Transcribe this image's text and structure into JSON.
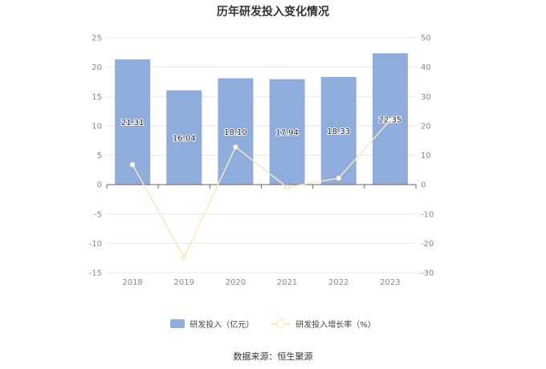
{
  "chart_data": {
    "type": "bar",
    "title": "历年研发投入变化情况",
    "categories": [
      "2018",
      "2019",
      "2020",
      "2021",
      "2022",
      "2023"
    ],
    "series": [
      {
        "name": "研发投入（亿元）",
        "type": "bar",
        "axis": "left",
        "values": [
          21.31,
          16.04,
          18.1,
          17.94,
          18.33,
          22.35
        ],
        "labels": [
          "21.31",
          "16.04",
          "18.10",
          "17.94",
          "18.33",
          "22.35"
        ]
      },
      {
        "name": "研发投入增长率（%）",
        "type": "line",
        "axis": "right",
        "values": [
          6.8,
          -24.7,
          12.8,
          -0.9,
          2.2,
          21.9
        ]
      }
    ],
    "y_left": {
      "ylim": [
        -15,
        25
      ],
      "ticks": [
        "25",
        "20",
        "15",
        "10",
        "5",
        "0",
        "-5",
        "-10",
        "-15"
      ]
    },
    "y_right": {
      "ylim": [
        -30,
        50
      ],
      "ticks": [
        "50",
        "40",
        "30",
        "20",
        "10",
        "0",
        "-10",
        "-20",
        "-30"
      ]
    },
    "legend_position": "bottom",
    "grid": true,
    "colors": {
      "bar": "#8eacdc",
      "line": "#fde6b8",
      "grid": "#e8e8e8",
      "axis": "#666666"
    }
  },
  "source": "数据来源：恒生聚源"
}
